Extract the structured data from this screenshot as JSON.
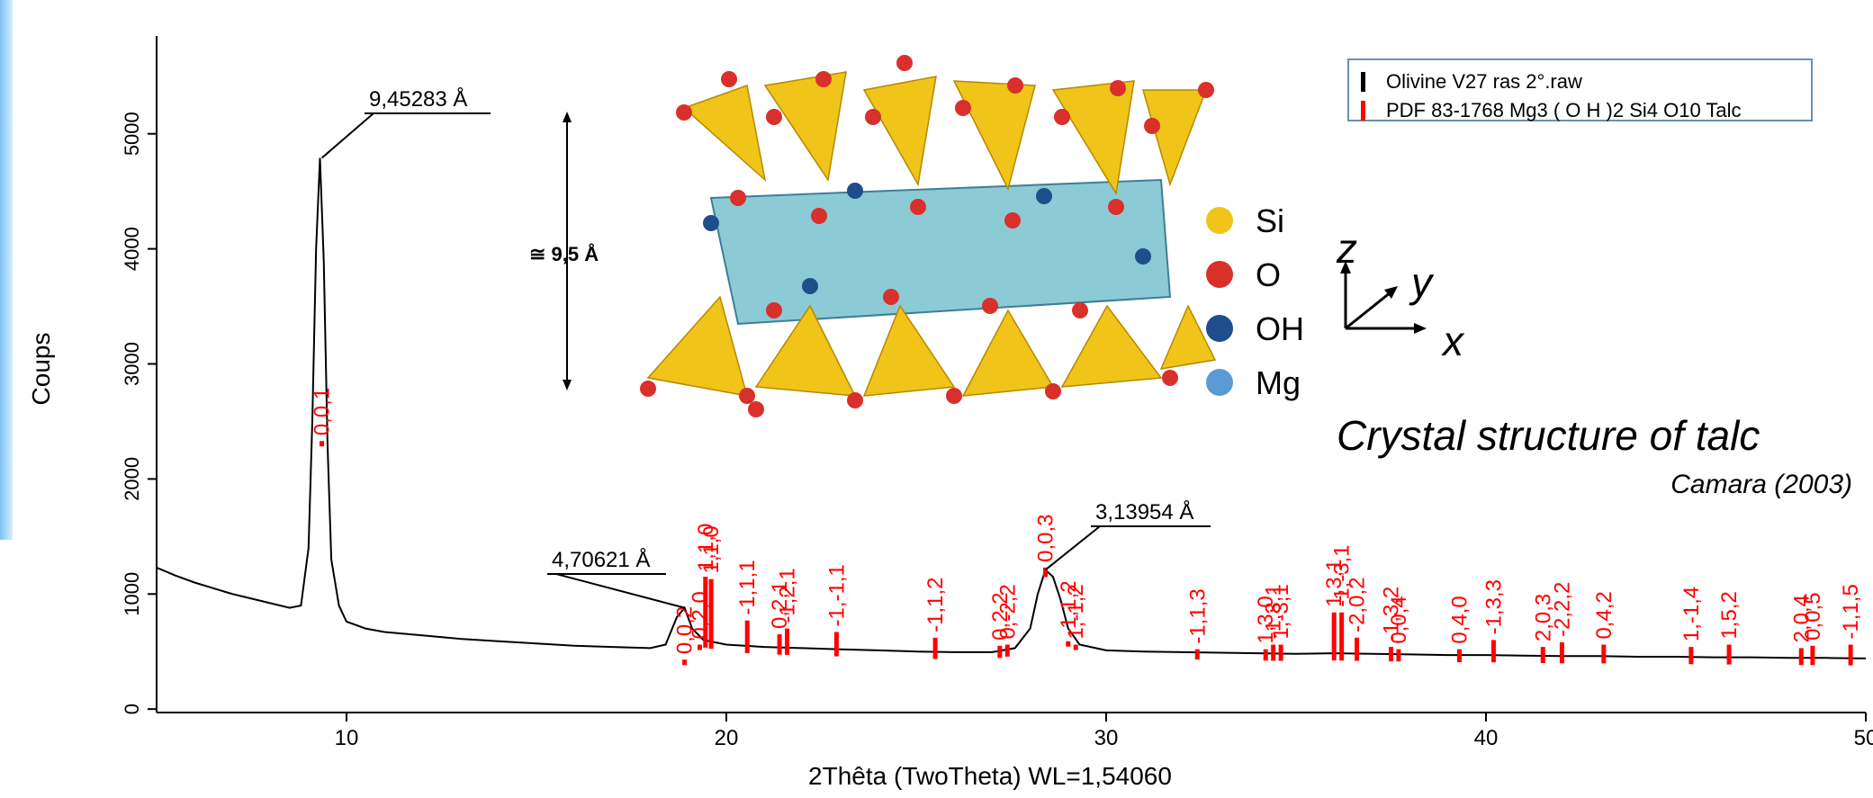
{
  "chart_data": {
    "type": "line",
    "x_label": "2Thêta (TwoTheta) WL=1,54060",
    "y_label": "Coups",
    "xlim": [
      5,
      50
    ],
    "xticks": [
      10,
      20,
      30,
      40,
      50
    ],
    "ylim": [
      -30,
      5850
    ],
    "yticks": [
      0,
      1000,
      2000,
      3000,
      4000,
      5000
    ],
    "legend": "top-right",
    "series": [
      {
        "name": "Olivine V27 ras 2°.raw",
        "color": "#000000",
        "type": "line",
        "x": [
          5,
          5.5,
          6,
          6.5,
          7,
          7.5,
          8,
          8.5,
          8.8,
          9.0,
          9.1,
          9.2,
          9.3,
          9.4,
          9.5,
          9.6,
          9.8,
          10,
          10.5,
          11,
          12,
          13,
          14,
          15,
          16,
          17,
          18,
          18.4,
          18.7,
          18.9,
          19.1,
          19.4,
          20,
          21,
          22,
          23,
          24,
          25,
          26,
          27,
          27.6,
          28,
          28.2,
          28.4,
          28.6,
          28.8,
          29,
          29.3,
          30,
          31,
          32,
          33,
          34,
          35,
          36,
          37,
          38,
          39,
          40,
          41,
          42,
          43,
          44,
          45,
          46,
          47,
          48,
          49,
          50
        ],
        "values": [
          1230,
          1160,
          1100,
          1050,
          1000,
          960,
          920,
          880,
          900,
          1400,
          2500,
          4000,
          4790,
          3900,
          2300,
          1300,
          900,
          760,
          700,
          670,
          640,
          610,
          590,
          570,
          550,
          540,
          530,
          560,
          800,
          880,
          700,
          600,
          560,
          540,
          530,
          520,
          510,
          500,
          495,
          495,
          530,
          700,
          1000,
          1210,
          1150,
          950,
          700,
          560,
          510,
          500,
          495,
          490,
          485,
          480,
          485,
          480,
          475,
          470,
          470,
          465,
          460,
          460,
          455,
          455,
          450,
          450,
          445,
          445,
          440
        ]
      },
      {
        "name": "PDF 83-1768  Mg3 ( O H )2 Si4 O10 Talc",
        "color": "#ff0000",
        "type": "sticks",
        "x": [
          9.35,
          18.9,
          19.3,
          19.45,
          19.6,
          20.55,
          21.4,
          21.6,
          22.9,
          25.5,
          27.2,
          27.4,
          28.4,
          29.0,
          29.2,
          32.4,
          34.2,
          34.4,
          34.6,
          36.0,
          36.2,
          36.6,
          37.5,
          37.7,
          39.3,
          40.2,
          41.5,
          42.0,
          43.1,
          45.4,
          46.4,
          48.3,
          48.6,
          49.6
        ],
        "values": [
          2330,
          430,
          560,
          1150,
          1130,
          770,
          650,
          700,
          670,
          620,
          550,
          560,
          1230,
          590,
          560,
          520,
          520,
          560,
          560,
          840,
          840,
          620,
          540,
          520,
          520,
          600,
          540,
          580,
          560,
          540,
          560,
          530,
          550,
          560
        ],
        "labels": [
          "0,0,1",
          "0,0,2",
          "0,2,0",
          "1,1,0",
          "1,1,0",
          "-1,1,1",
          "0,2,1",
          "-1,2,1",
          "-1,-1,1",
          "-1,1,2",
          "0,2,2",
          "0,-2,2",
          "0,0,3",
          "-1,1,2",
          "1,-1,2",
          "-1,1,3",
          "1,3,0",
          "-1,3,1",
          "1,-3,1",
          "1,3,1",
          "-1,-3,1",
          "-2,0,2",
          "-1,3,2",
          "0,0,4",
          "0,4,0",
          "-1,3,3",
          "2,0,3",
          "-2,2,2",
          "0,4,2",
          "1,-1,4",
          "1,5,2",
          "2,0,4",
          "0,0,5",
          "-1,1,5"
        ]
      }
    ],
    "annotations": [
      "9,45283 Å",
      "4,70621 Å",
      "3,13954 Å"
    ]
  },
  "inset": {
    "scale_label": "≅ 9,5 Å",
    "legend": [
      "Si",
      "O",
      "OH",
      "Mg"
    ],
    "axes": [
      "z",
      "y",
      "x"
    ],
    "caption": "Crystal structure of talc",
    "credit": "Camara (2003)"
  }
}
